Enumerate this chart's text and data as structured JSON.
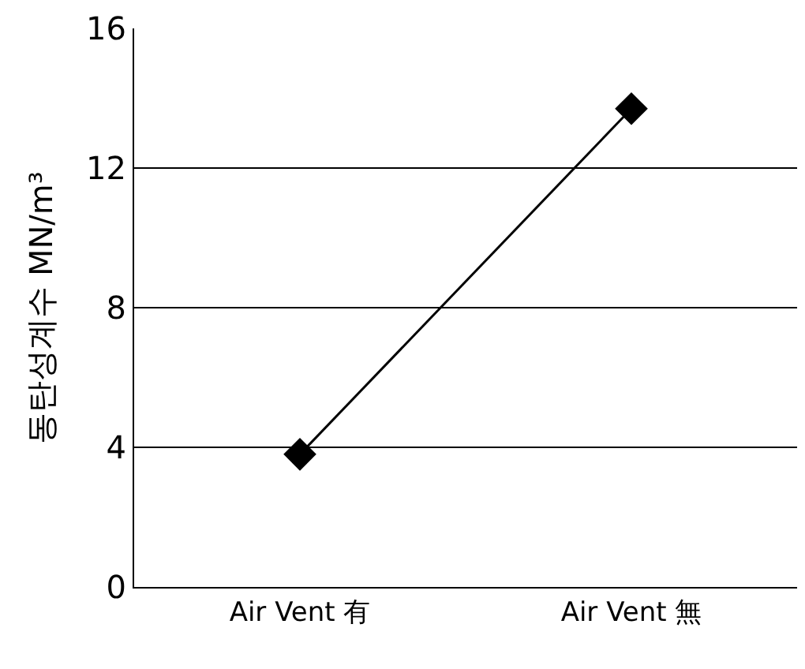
{
  "chart_data": {
    "type": "line",
    "ylabel": "동탄성계수 MN/m³",
    "categories": [
      "Air Vent 有",
      "Air Vent 無"
    ],
    "series": [
      {
        "color": "#000000",
        "values": [
          3.8,
          13.7
        ]
      }
    ],
    "ylim": [
      0,
      16
    ],
    "yticks": [
      0,
      4,
      8,
      12,
      16
    ],
    "grid": "y",
    "marker": "diamond",
    "line_style": "solid",
    "legend": false
  }
}
